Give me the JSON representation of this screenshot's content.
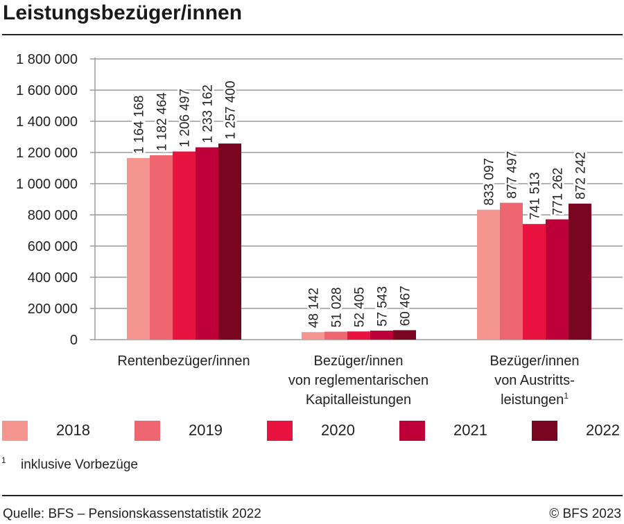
{
  "title": "Leistungsbezüger/innen",
  "chart_data": {
    "type": "bar",
    "title": "Leistungsbezüger/innen",
    "categories": [
      [
        "Rentenbezüger/innen"
      ],
      [
        "Bezüger/innen",
        "von reglementarischen",
        "Kapitalleistungen"
      ],
      [
        "Bezüger/innen",
        "von Austritts-",
        "leistungen"
      ]
    ],
    "category_footnote_marks": [
      "",
      "",
      "1"
    ],
    "series": [
      {
        "name": "2018",
        "color": "#f4958f",
        "values": [
          1164168,
          48142,
          833097
        ],
        "labels": [
          "1 164 168",
          "48 142",
          "833 097"
        ]
      },
      {
        "name": "2019",
        "color": "#ee6670",
        "values": [
          1182464,
          51028,
          877497
        ],
        "labels": [
          "1 182 464",
          "51 028",
          "877 497"
        ]
      },
      {
        "name": "2020",
        "color": "#e8133f",
        "values": [
          1206497,
          52405,
          741513
        ],
        "labels": [
          "1 206 497",
          "52 405",
          "741 513"
        ]
      },
      {
        "name": "2021",
        "color": "#bd0038",
        "values": [
          1233162,
          57543,
          771262
        ],
        "labels": [
          "1 233 162",
          "57 543",
          "771 262"
        ]
      },
      {
        "name": "2022",
        "color": "#7a0520",
        "values": [
          1257400,
          60467,
          872242
        ],
        "labels": [
          "1 257 400",
          "60 467",
          "872 242"
        ]
      }
    ],
    "ylim": [
      0,
      1800000
    ],
    "yticks": [
      0,
      200000,
      400000,
      600000,
      800000,
      1000000,
      1200000,
      1400000,
      1600000,
      1800000
    ],
    "ytick_labels": [
      "0",
      "200 000",
      "400 000",
      "600 000",
      "800 000",
      "1 000 000",
      "1 200 000",
      "1 400 000",
      "1 600 000",
      "1 800 000"
    ],
    "grid": true,
    "legend_position": "bottom"
  },
  "footnote": {
    "mark": "1",
    "text": "inklusive Vorbezüge"
  },
  "source": "Quelle: BFS – Pensionskassenstatistik 2022",
  "copyright": "© BFS 2023"
}
